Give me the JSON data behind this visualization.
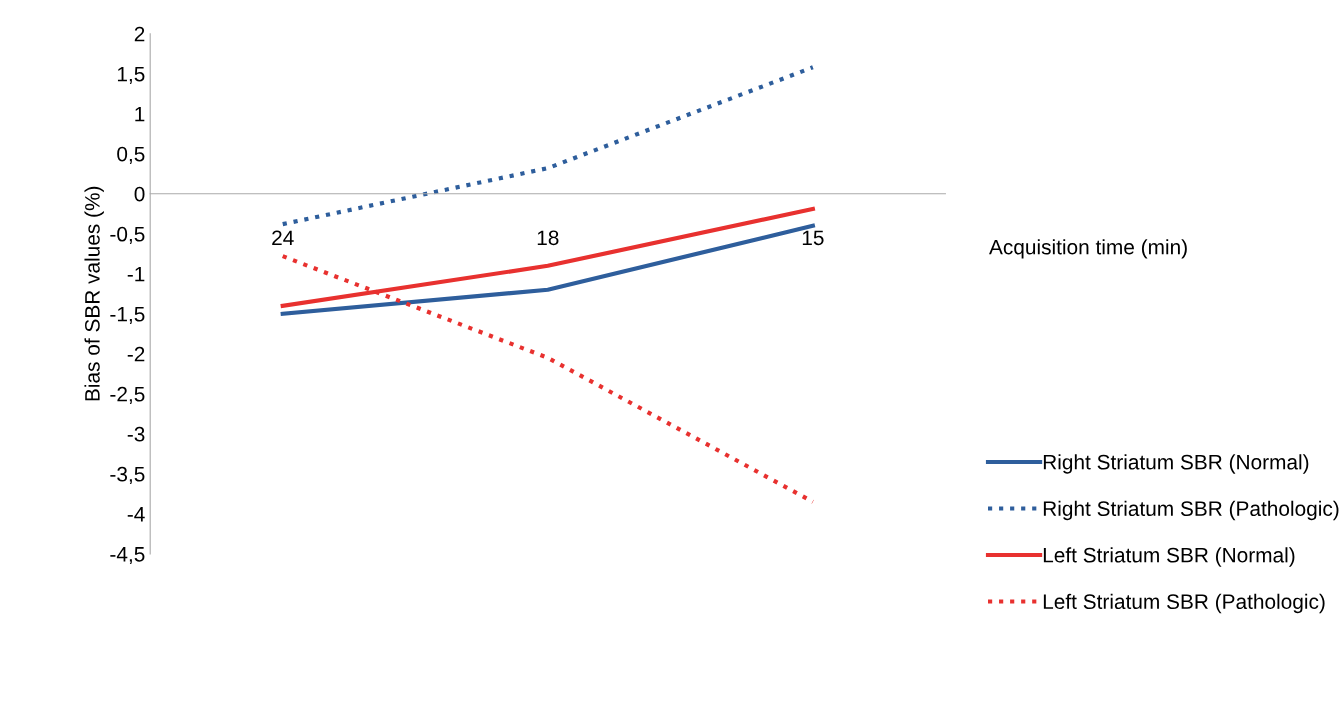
{
  "chart_data": {
    "type": "line",
    "xlabel": "Acquisition time (min)",
    "ylabel": "Bias of SBR values (%)",
    "categories": [
      "24",
      "18",
      "15"
    ],
    "series": [
      {
        "name": "Right Striatum SBR (Normal)",
        "color": "#2e5e9c",
        "values": [
          -1.5,
          -1.2,
          -0.4
        ],
        "line_style": "solid"
      },
      {
        "name": "Right Striatum SBR (Pathologic)",
        "color": "#2e5e9c",
        "values": [
          -0.38,
          0.32,
          1.58
        ],
        "line_style": "dotted"
      },
      {
        "name": "Left Striatum SBR (Normal)",
        "color": "#e8312f",
        "values": [
          -1.4,
          -0.9,
          -0.19
        ],
        "line_style": "solid"
      },
      {
        "name": "Left Striatum SBR (Pathologic)",
        "color": "#e8312f",
        "values": [
          -0.78,
          -2.05,
          -3.85
        ],
        "line_style": "dotted"
      }
    ],
    "ylim": [
      -4.5,
      2
    ],
    "yticks": [
      2,
      {
        "value": 1.5,
        "label": "1,5"
      },
      1,
      {
        "value": 0.5,
        "label": "0,5"
      },
      0,
      {
        "value": -0.5,
        "label": "-0,5"
      },
      -1,
      {
        "value": -1.5,
        "label": "-1,5"
      },
      -2,
      {
        "value": -2.5,
        "label": "-2,5"
      },
      -3,
      {
        "value": -3.5,
        "label": "-3,5"
      },
      -4,
      {
        "value": -4.5,
        "label": "-4,5"
      }
    ],
    "grid": false,
    "legend": "bottom right",
    "marker": "none"
  }
}
